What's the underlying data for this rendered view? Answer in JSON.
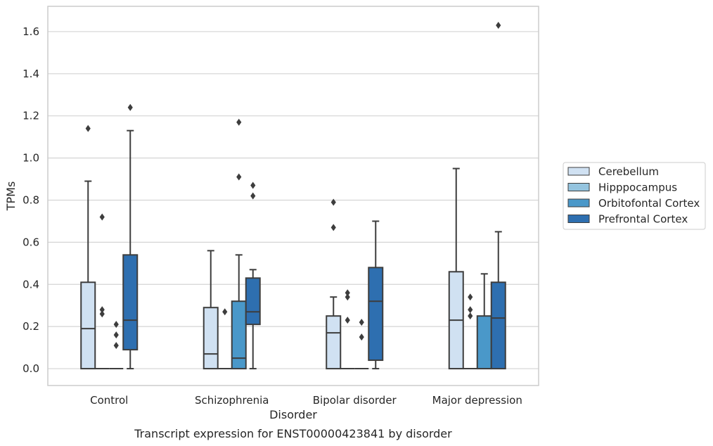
{
  "chart_data": {
    "type": "box",
    "caption": "Transcript expression for ENST00000423841 by disorder",
    "xlabel": "Disorder",
    "ylabel": "TPMs",
    "ylim": [
      -0.08,
      1.72
    ],
    "yticks": [
      "0.0",
      "0.2",
      "0.4",
      "0.6",
      "0.8",
      "1.0",
      "1.2",
      "1.4",
      "1.6"
    ],
    "yticks_values": [
      0.0,
      0.2,
      0.4,
      0.6,
      0.8,
      1.0,
      1.2,
      1.4,
      1.6
    ],
    "grid": "horizontal",
    "legend_position": "right",
    "categories": [
      "Control",
      "Schizophrenia",
      "Bipolar disorder",
      "Major depression"
    ],
    "series": [
      {
        "name": "Cerebellum",
        "color": "#d0e1f2",
        "boxes": [
          {
            "q1": 0.0,
            "median": 0.19,
            "q3": 0.41,
            "whisker_low": 0.0,
            "whisker_high": 0.89,
            "outliers": [
              1.14
            ]
          },
          {
            "q1": 0.0,
            "median": 0.07,
            "q3": 0.29,
            "whisker_low": 0.0,
            "whisker_high": 0.56,
            "outliers": []
          },
          {
            "q1": 0.0,
            "median": 0.17,
            "q3": 0.25,
            "whisker_low": 0.0,
            "whisker_high": 0.34,
            "outliers": [
              0.67,
              0.79
            ]
          },
          {
            "q1": 0.0,
            "median": 0.23,
            "q3": 0.46,
            "whisker_low": 0.0,
            "whisker_high": 0.95,
            "outliers": []
          }
        ]
      },
      {
        "name": "Hipppocampus",
        "color": "#94c4df",
        "boxes": [
          {
            "q1": 0.0,
            "median": 0.0,
            "q3": 0.0,
            "whisker_low": 0.0,
            "whisker_high": 0.0,
            "outliers": [
              0.26,
              0.28,
              0.72
            ]
          },
          {
            "q1": 0.0,
            "median": 0.0,
            "q3": 0.0,
            "whisker_low": 0.0,
            "whisker_high": 0.0,
            "outliers": [
              0.27
            ]
          },
          {
            "q1": 0.0,
            "median": 0.0,
            "q3": 0.0,
            "whisker_low": 0.0,
            "whisker_high": 0.0,
            "outliers": [
              0.23,
              0.34,
              0.36
            ]
          },
          {
            "q1": 0.0,
            "median": 0.0,
            "q3": 0.0,
            "whisker_low": 0.0,
            "whisker_high": 0.0,
            "outliers": [
              0.25,
              0.28,
              0.34
            ]
          }
        ]
      },
      {
        "name": "Orbitofontal Cortex",
        "color": "#4a98c9",
        "boxes": [
          {
            "q1": 0.0,
            "median": 0.0,
            "q3": 0.0,
            "whisker_low": 0.0,
            "whisker_high": 0.0,
            "outliers": [
              0.11,
              0.16,
              0.21
            ]
          },
          {
            "q1": 0.0,
            "median": 0.05,
            "q3": 0.32,
            "whisker_low": 0.0,
            "whisker_high": 0.54,
            "outliers": [
              0.91,
              1.17
            ]
          },
          {
            "q1": 0.0,
            "median": 0.0,
            "q3": 0.0,
            "whisker_low": 0.0,
            "whisker_high": 0.0,
            "outliers": [
              0.15,
              0.22
            ]
          },
          {
            "q1": 0.0,
            "median": 0.0,
            "q3": 0.25,
            "whisker_low": 0.0,
            "whisker_high": 0.45,
            "outliers": []
          }
        ]
      },
      {
        "name": "Prefrontal Cortex",
        "color": "#2e6fb0",
        "boxes": [
          {
            "q1": 0.09,
            "median": 0.23,
            "q3": 0.54,
            "whisker_low": 0.0,
            "whisker_high": 1.13,
            "outliers": [
              1.24
            ]
          },
          {
            "q1": 0.21,
            "median": 0.27,
            "q3": 0.43,
            "whisker_low": 0.0,
            "whisker_high": 0.47,
            "outliers": [
              0.82,
              0.87
            ]
          },
          {
            "q1": 0.04,
            "median": 0.32,
            "q3": 0.48,
            "whisker_low": 0.0,
            "whisker_high": 0.7,
            "outliers": []
          },
          {
            "q1": 0.0,
            "median": 0.24,
            "q3": 0.41,
            "whisker_low": 0.0,
            "whisker_high": 0.65,
            "outliers": [
              1.63
            ]
          }
        ]
      }
    ]
  }
}
